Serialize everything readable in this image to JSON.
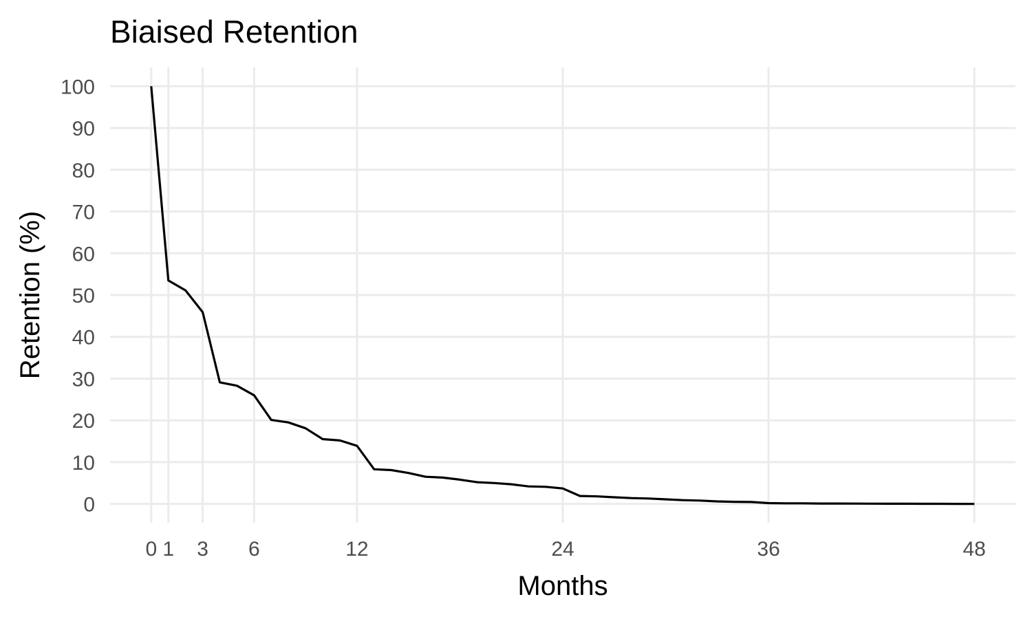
{
  "chart_data": {
    "type": "line",
    "title": "Biaised Retention",
    "xlabel": "Months",
    "ylabel": "Retention (%)",
    "xlim": [
      -2.4,
      50.4
    ],
    "ylim": [
      -4.5,
      104.5
    ],
    "xticks": [
      0,
      1,
      3,
      6,
      12,
      24,
      36,
      48
    ],
    "yticks": [
      0,
      10,
      20,
      30,
      40,
      50,
      60,
      70,
      80,
      90,
      100
    ],
    "grid": true,
    "series": [
      {
        "x": [
          0,
          1,
          2,
          3,
          4,
          5,
          6,
          7,
          8,
          9,
          10,
          11,
          12,
          13,
          14,
          15,
          16,
          17,
          18,
          19,
          20,
          21,
          22,
          23,
          24,
          25,
          26,
          27,
          28,
          29,
          30,
          31,
          32,
          33,
          34,
          35,
          36,
          37,
          38,
          39,
          40,
          41,
          42,
          43,
          44,
          45,
          46,
          47,
          48
        ],
        "values": [
          100,
          53.5,
          51.1,
          45.9,
          29.1,
          28.3,
          26,
          20.1,
          19.5,
          18.1,
          15.5,
          15.2,
          13.9,
          8.3,
          8.1,
          7.4,
          6.5,
          6.3,
          5.8,
          5.2,
          5,
          4.7,
          4.2,
          4.1,
          3.7,
          1.9,
          1.8,
          1.6,
          1.4,
          1.3,
          1.1,
          0.9,
          0.8,
          0.6,
          0.5,
          0.45,
          0.2,
          0.15,
          0.15,
          0.1,
          0.1,
          0.08,
          0.06,
          0.05,
          0.04,
          0.03,
          0.02,
          0.01,
          0
        ]
      }
    ]
  }
}
